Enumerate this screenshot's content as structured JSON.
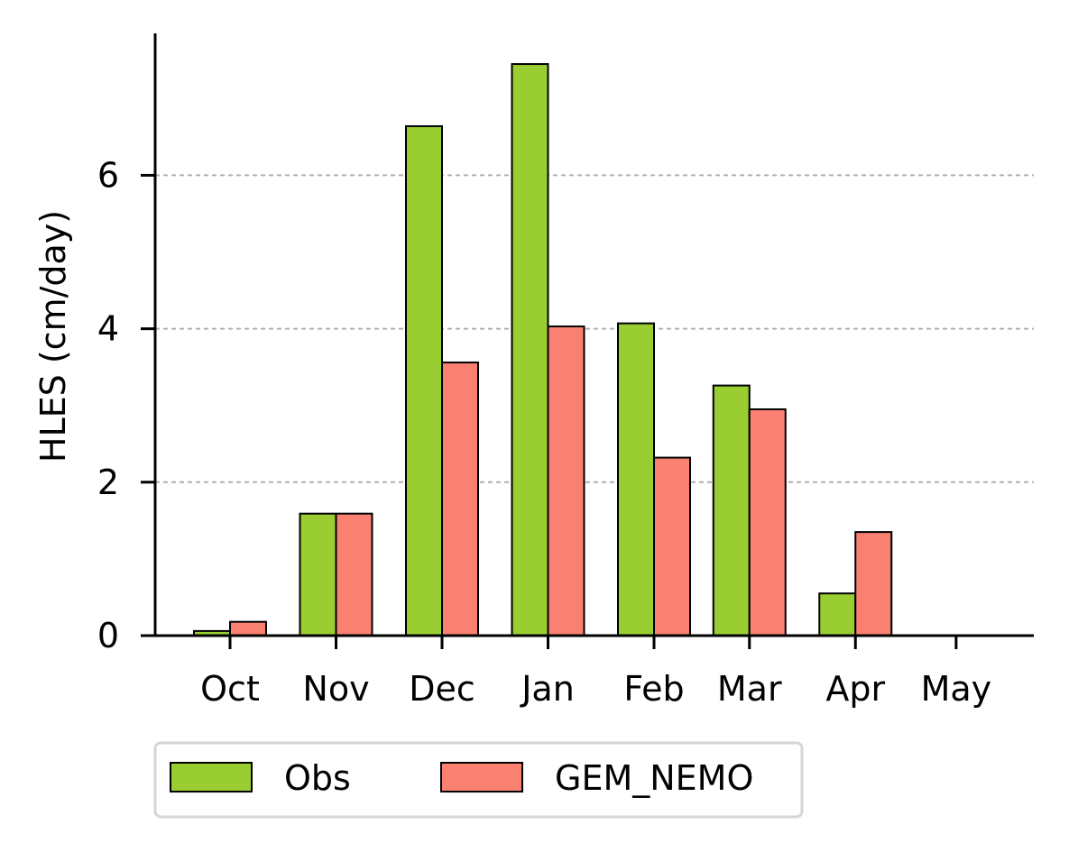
{
  "chart_data": {
    "type": "bar",
    "title": "",
    "xlabel": "",
    "ylabel": "HLES (cm/day)",
    "categories": [
      "Oct",
      "Nov",
      "Dec",
      "Jan",
      "Feb",
      "Mar",
      "Apr",
      "May"
    ],
    "x": [
      0,
      1,
      2,
      3,
      4,
      4.9,
      5.9,
      6.85
    ],
    "series": [
      {
        "name": "Obs",
        "color": "#9acd32",
        "values": [
          0.06,
          1.59,
          6.64,
          7.45,
          4.07,
          3.26,
          0.55,
          0.0
        ]
      },
      {
        "name": "GEM_NEMO",
        "color": "#fa8072",
        "values": [
          0.18,
          1.59,
          3.56,
          4.03,
          2.32,
          2.95,
          1.35,
          0.0
        ]
      }
    ],
    "yticks": [
      0,
      2,
      4,
      6
    ],
    "ylim": [
      0,
      7.85
    ],
    "grid": "y-dashed",
    "legend": "below-left"
  }
}
